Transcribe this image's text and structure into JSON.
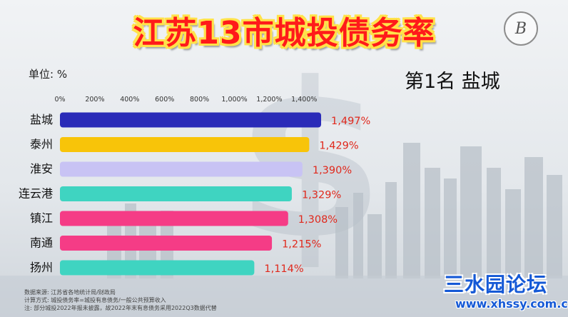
{
  "header": {
    "title": "江苏13市城投债务率",
    "seal_letter": "B",
    "unit_label": "单位: %",
    "rank_label": "第1名 盐城"
  },
  "chart_data": {
    "type": "bar",
    "orientation": "horizontal",
    "categories": [
      "盐城",
      "泰州",
      "淮安",
      "连云港",
      "镇江",
      "南通",
      "扬州"
    ],
    "values": [
      1497,
      1429,
      1390,
      1329,
      1308,
      1215,
      1114
    ],
    "value_labels": [
      "1,497%",
      "1,429%",
      "1,390%",
      "1,329%",
      "1,308%",
      "1,215%",
      "1,114%"
    ],
    "x_ticks": [
      0,
      200,
      400,
      600,
      800,
      1000,
      1200,
      1400
    ],
    "x_tick_labels": [
      "0%",
      "200%",
      "400%",
      "600%",
      "800%",
      "1,000%",
      "1,200%",
      "1,400%"
    ],
    "xlim": [
      0,
      1500
    ],
    "axis_position": "top",
    "grid": false,
    "colors": [
      "#2a2bb8",
      "#f8c409",
      "#c8c3f4",
      "#3fd4c1",
      "#f53c86",
      "#f53c86",
      "#3fd4c1"
    ],
    "label_color": "#e0281c"
  },
  "notes": [
    "数据来源: 江苏省各地统计局/财政局",
    "计算方式: 城投债务率=城投有息债务/一般公共预算收入",
    "注: 部分城投2022年报未披露，故2022年末有息债务采用2022Q3数据代替"
  ],
  "watermark": {
    "main": "三水园论坛",
    "url": "www.xhssy.com.cn"
  }
}
